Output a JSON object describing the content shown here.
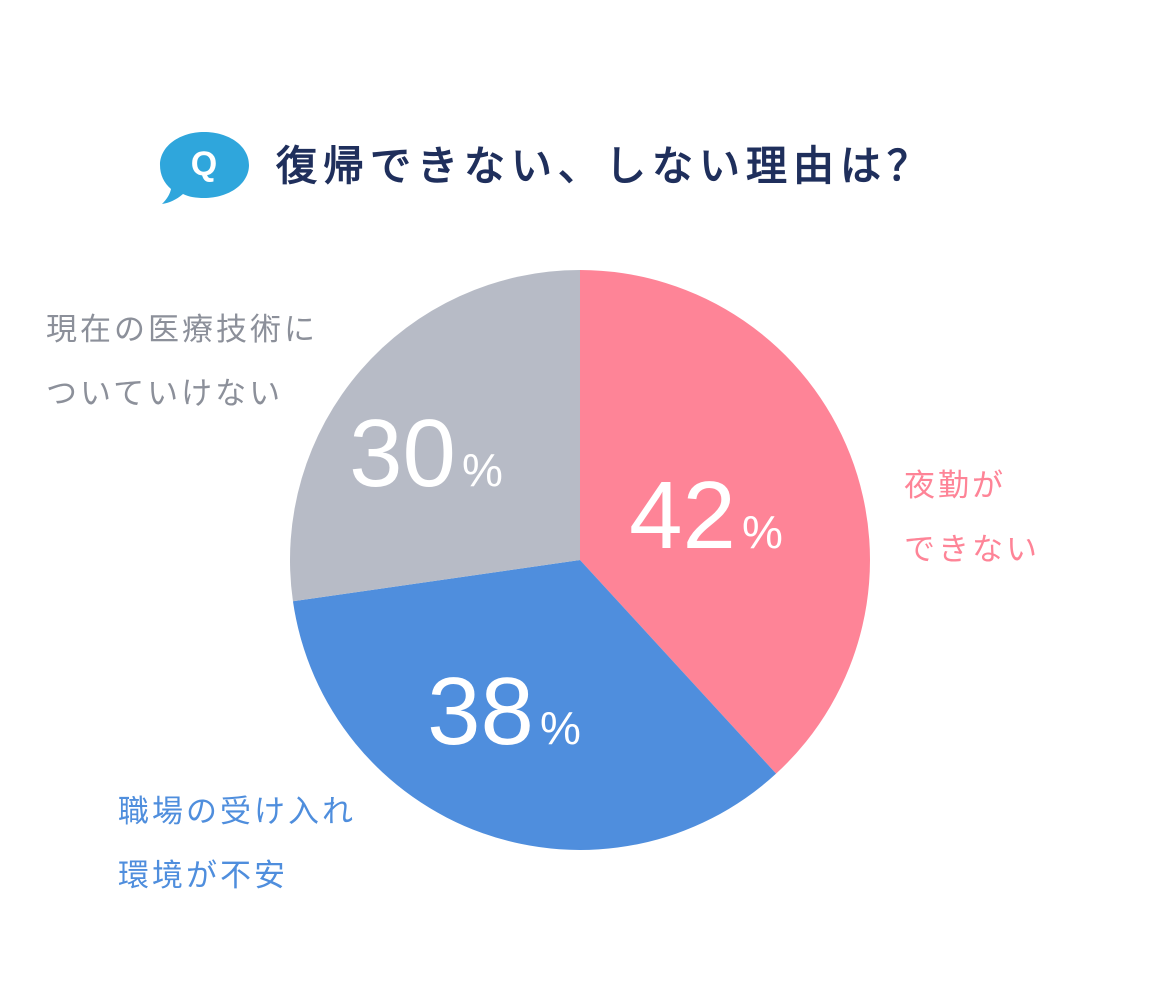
{
  "header": {
    "badge_letter": "Q",
    "badge_color": "#2fa6dc",
    "title_color": "#1f2f5c"
  },
  "chart_data": {
    "type": "pie",
    "title": "復帰できない、しない理由は？",
    "percent_symbol": "%",
    "start_angle_deg": 0,
    "direction": "clockwise",
    "slices": [
      {
        "id": "night",
        "value": 42,
        "value_text": "42",
        "label_lines": [
          "夜勤が",
          "できない"
        ],
        "color": "#fe8497",
        "label_color": "#fe8497"
      },
      {
        "id": "workplace",
        "value": 38,
        "value_text": "38",
        "label_lines": [
          "職場の受け入れ",
          "環境が不安"
        ],
        "color": "#4f8edd",
        "label_color": "#4f8edd"
      },
      {
        "id": "skills",
        "value": 30,
        "value_text": "30",
        "label_lines": [
          "現在の医療技術に",
          "ついていけない"
        ],
        "color": "#b7bbc6",
        "label_color": "#8c909a"
      }
    ]
  }
}
